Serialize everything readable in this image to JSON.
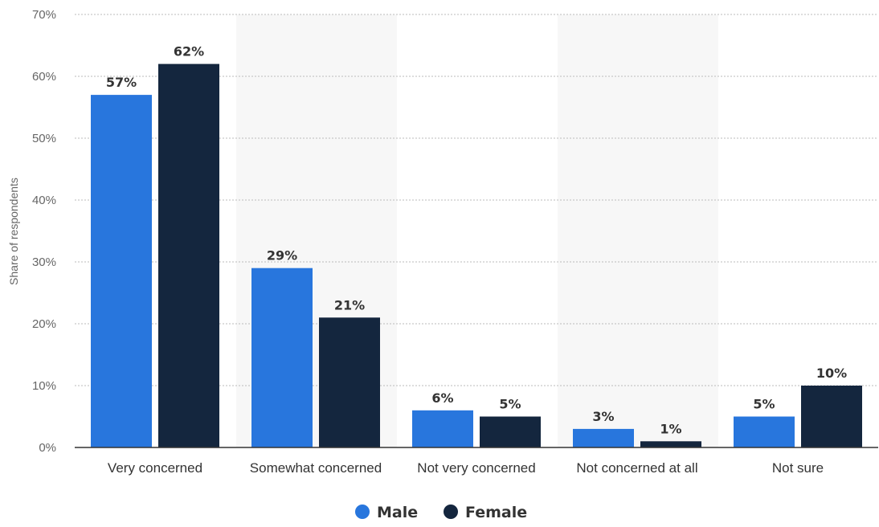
{
  "chart_data": {
    "type": "bar",
    "categories": [
      "Very concerned",
      "Somewhat concerned",
      "Not very concerned",
      "Not concerned at all",
      "Not sure"
    ],
    "series": [
      {
        "name": "Male",
        "values": [
          57,
          29,
          6,
          3,
          5
        ],
        "labels": [
          "57%",
          "29%",
          "6%",
          "3%",
          "5%"
        ],
        "color": "#2876dd"
      },
      {
        "name": "Female",
        "values": [
          62,
          21,
          5,
          1,
          10
        ],
        "labels": [
          "62%",
          "21%",
          "5%",
          "1%",
          "10%"
        ],
        "color": "#14263e"
      }
    ],
    "ylabel": "Share of respondents",
    "ylim": [
      0,
      70
    ],
    "yticks": [
      0,
      10,
      20,
      30,
      40,
      50,
      60,
      70
    ],
    "ytick_labels": [
      "0%",
      "10%",
      "20%",
      "30%",
      "40%",
      "50%",
      "60%",
      "70%"
    ],
    "grid": true,
    "legend_position": "bottom-center",
    "band_color": "#f7f7f7",
    "grid_color": "#bbbbbb"
  }
}
